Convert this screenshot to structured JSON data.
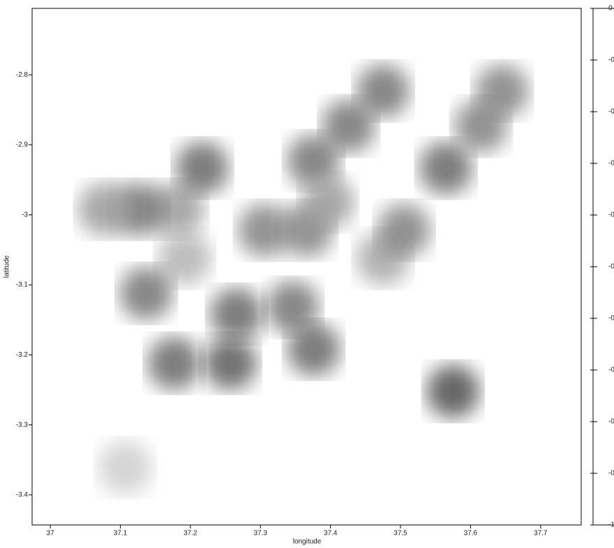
{
  "chart_data": {
    "type": "raster",
    "x_label": "longitude",
    "y_label": "latitude",
    "xlim": [
      36.974,
      37.758
    ],
    "ylim": [
      -3.443,
      -2.705
    ],
    "xticks": [
      37,
      37.1,
      37.2,
      37.3,
      37.4,
      37.5,
      37.6,
      37.7
    ],
    "yticks": [
      -2.8,
      -2.9,
      -3,
      -3.1,
      -3.2,
      -3.3,
      -3.4
    ],
    "clim": [
      -1,
      0
    ],
    "cticks": [
      {
        "value": -1,
        "label": "-1"
      },
      {
        "value": -0.9,
        "label": "-0"
      },
      {
        "value": -0.8,
        "label": "-0"
      },
      {
        "value": -0.7,
        "label": "-0"
      },
      {
        "value": -0.6,
        "label": "-0"
      },
      {
        "value": -0.5,
        "label": "-0"
      },
      {
        "value": -0.4,
        "label": "-0"
      },
      {
        "value": -0.3,
        "label": "-0"
      },
      {
        "value": -0.2,
        "label": "-0"
      },
      {
        "value": -0.1,
        "label": "-0"
      },
      {
        "value": 0,
        "label": "0"
      }
    ],
    "x": [
      37.192,
      37.182,
      37.366,
      37.306,
      37.426,
      37.475,
      37.475,
      37.505,
      37.127,
      37.137,
      37.346,
      37.266,
      37.376,
      37.565,
      37.615,
      37.217,
      37.177,
      37.257,
      37.376,
      37.078,
      37.107,
      37.645,
      37.575,
      37.396
    ],
    "y": [
      -3.062,
      -2.992,
      -3.022,
      -3.022,
      -2.873,
      -2.823,
      -3.062,
      -3.022,
      -2.992,
      -3.112,
      -3.132,
      -3.142,
      -2.923,
      -2.933,
      -2.873,
      -2.933,
      -3.212,
      -3.212,
      -3.192,
      -2.992,
      -3.361,
      -2.823,
      -3.252,
      -2.982
    ],
    "values": [
      -0.7,
      -0.6,
      -0.5,
      -0.5,
      -0.45,
      -0.45,
      -0.65,
      -0.5,
      -0.45,
      -0.45,
      -0.45,
      -0.4,
      -0.45,
      -0.4,
      -0.5,
      -0.4,
      -0.4,
      -0.35,
      -0.4,
      -0.6,
      -0.8,
      -0.5,
      -0.3,
      -0.6
    ]
  }
}
